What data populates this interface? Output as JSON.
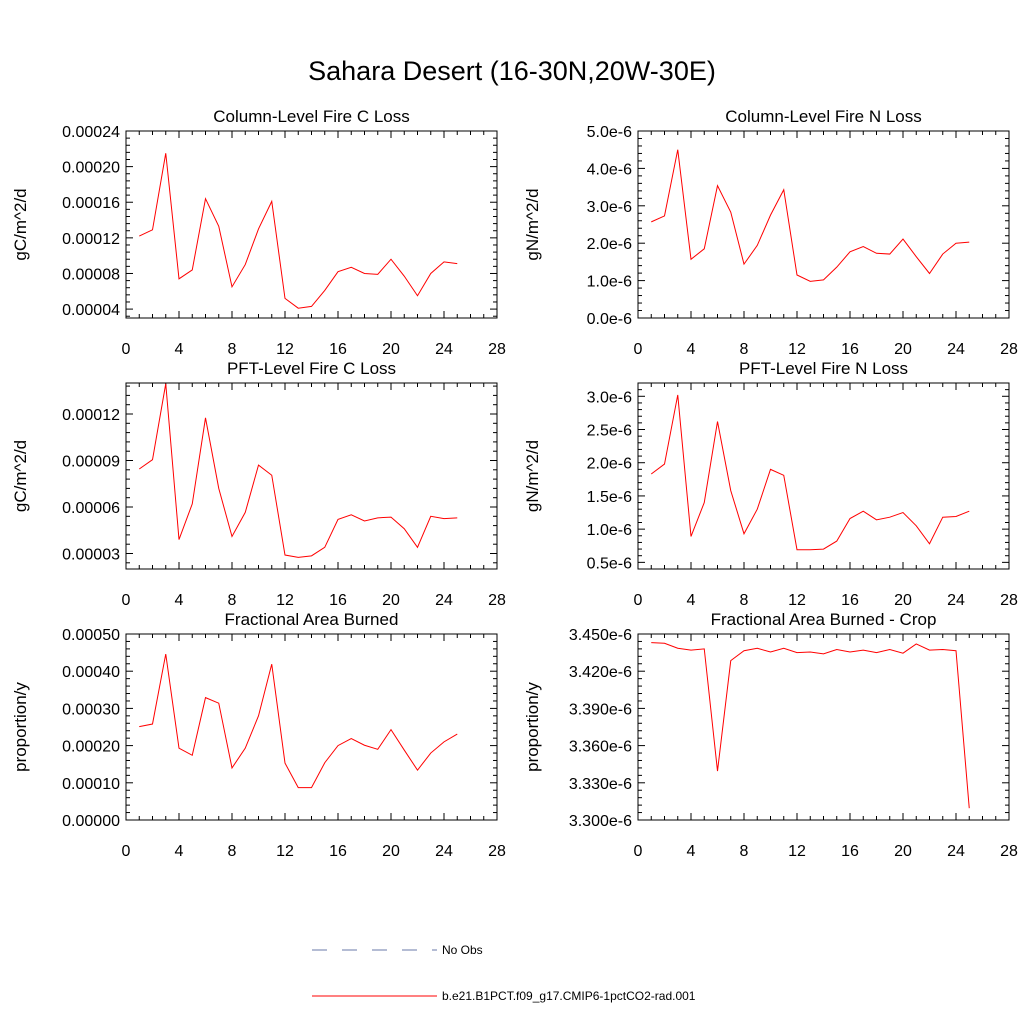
{
  "title": "Sahara Desert (16-30N,20W-30E)",
  "legend": {
    "entries": [
      {
        "label": "No Obs",
        "color": "#6a7aa8",
        "style": "dashed"
      },
      {
        "label": "b.e21.B1PCT.f09_g17.CMIP6-1pctCO2-rad.001",
        "color": "#ff0000",
        "style": "solid"
      }
    ]
  },
  "chart_data": [
    {
      "type": "line",
      "title": "Column-Level Fire C Loss",
      "xlabel": "",
      "ylabel": "gC/m^2/d",
      "xlim": [
        0,
        28
      ],
      "ylim": [
        3e-05,
        0.00024
      ],
      "x_ticks": [
        0,
        4,
        8,
        12,
        16,
        20,
        24,
        28
      ],
      "y_ticks": [
        4e-05,
        8e-05,
        0.00012,
        0.00016,
        0.0002,
        0.00024
      ],
      "y_tick_labels": [
        "0.00004",
        "0.00008",
        "0.00012",
        "0.00016",
        "0.00020",
        "0.00024"
      ],
      "x": [
        1,
        2,
        3,
        4,
        5,
        6,
        7,
        8,
        9,
        10,
        11,
        12,
        13,
        14,
        15,
        16,
        17,
        18,
        19,
        20,
        21,
        22,
        23,
        24,
        25
      ],
      "series": [
        {
          "values": [
            0.000122,
            0.000129,
            0.000215,
            7.4e-05,
            8.4e-05,
            0.000164,
            0.000133,
            6.5e-05,
            9e-05,
            0.00013,
            0.000161,
            5.2e-05,
            4.1e-05,
            4.3e-05,
            6.1e-05,
            8.2e-05,
            8.7e-05,
            8e-05,
            7.9e-05,
            9.6e-05,
            7.7e-05,
            5.5e-05,
            8e-05,
            9.3e-05,
            9.1e-05
          ],
          "color": "#ff0000"
        }
      ]
    },
    {
      "type": "line",
      "title": "Column-Level Fire N Loss",
      "xlabel": "",
      "ylabel": "gN/m^2/d",
      "xlim": [
        0,
        28
      ],
      "ylim": [
        0.0,
        5e-06
      ],
      "x_ticks": [
        0,
        4,
        8,
        12,
        16,
        20,
        24,
        28
      ],
      "y_ticks": [
        0.0,
        1e-06,
        2e-06,
        3e-06,
        4e-06,
        5e-06
      ],
      "y_tick_labels": [
        "0.0e-6",
        "1.0e-6",
        "2.0e-6",
        "3.0e-6",
        "4.0e-6",
        "5.0e-6"
      ],
      "x": [
        1,
        2,
        3,
        4,
        5,
        6,
        7,
        8,
        9,
        10,
        11,
        12,
        13,
        14,
        15,
        16,
        17,
        18,
        19,
        20,
        21,
        22,
        23,
        24,
        25
      ],
      "series": [
        {
          "values": [
            2.57e-06,
            2.73e-06,
            4.5e-06,
            1.57e-06,
            1.85e-06,
            3.54e-06,
            2.83e-06,
            1.44e-06,
            1.94e-06,
            2.75e-06,
            3.43e-06,
            1.15e-06,
            9.8e-07,
            1.02e-06,
            1.36e-06,
            1.77e-06,
            1.91e-06,
            1.73e-06,
            1.71e-06,
            2.11e-06,
            1.64e-06,
            1.19e-06,
            1.71e-06,
            2e-06,
            2.03e-06
          ],
          "color": "#ff0000"
        }
      ]
    },
    {
      "type": "line",
      "title": "PFT-Level Fire C Loss",
      "xlabel": "",
      "ylabel": "gC/m^2/d",
      "xlim": [
        0,
        28
      ],
      "ylim": [
        2e-05,
        0.00014
      ],
      "x_ticks": [
        0,
        4,
        8,
        12,
        16,
        20,
        24,
        28
      ],
      "y_ticks": [
        3e-05,
        6e-05,
        9e-05,
        0.00012
      ],
      "y_tick_labels": [
        "0.00003",
        "0.00006",
        "0.00009",
        "0.00012"
      ],
      "x": [
        1,
        2,
        3,
        4,
        5,
        6,
        7,
        8,
        9,
        10,
        11,
        12,
        13,
        14,
        15,
        16,
        17,
        18,
        19,
        20,
        21,
        22,
        23,
        24,
        25
      ],
      "series": [
        {
          "values": [
            8.45e-05,
            9.05e-05,
            0.0001395,
            3.9e-05,
            6.2e-05,
            0.0001175,
            7.2e-05,
            4.1e-05,
            5.65e-05,
            8.7e-05,
            8.05e-05,
            2.9e-05,
            2.75e-05,
            2.85e-05,
            3.4e-05,
            5.2e-05,
            5.5e-05,
            5.1e-05,
            5.3e-05,
            5.35e-05,
            4.6e-05,
            3.4e-05,
            5.4e-05,
            5.25e-05,
            5.3e-05
          ],
          "color": "#ff0000"
        }
      ]
    },
    {
      "type": "line",
      "title": "PFT-Level Fire N Loss",
      "xlabel": "",
      "ylabel": "gN/m^2/d",
      "xlim": [
        0,
        28
      ],
      "ylim": [
        4e-07,
        3.2e-06
      ],
      "x_ticks": [
        0,
        4,
        8,
        12,
        16,
        20,
        24,
        28
      ],
      "y_ticks": [
        5e-07,
        1e-06,
        1.5e-06,
        2e-06,
        2.5e-06,
        3e-06
      ],
      "y_tick_labels": [
        "0.5e-6",
        "1.0e-6",
        "1.5e-6",
        "2.0e-6",
        "2.5e-6",
        "3.0e-6"
      ],
      "x": [
        1,
        2,
        3,
        4,
        5,
        6,
        7,
        8,
        9,
        10,
        11,
        12,
        13,
        14,
        15,
        16,
        17,
        18,
        19,
        20,
        21,
        22,
        23,
        24,
        25
      ],
      "series": [
        {
          "values": [
            1.83e-06,
            1.98e-06,
            3.02e-06,
            8.9e-07,
            1.4e-06,
            2.62e-06,
            1.58e-06,
            9.3e-07,
            1.3e-06,
            1.9e-06,
            1.81e-06,
            6.9e-07,
            6.9e-07,
            7e-07,
            8.2e-07,
            1.16e-06,
            1.27e-06,
            1.14e-06,
            1.18e-06,
            1.25e-06,
            1.05e-06,
            7.8e-07,
            1.18e-06,
            1.19e-06,
            1.27e-06
          ],
          "color": "#ff0000"
        }
      ]
    },
    {
      "type": "line",
      "title": "Fractional Area Burned",
      "xlabel": "",
      "ylabel": "proportion/y",
      "xlim": [
        0,
        28
      ],
      "ylim": [
        0.0,
        0.0005
      ],
      "x_ticks": [
        0,
        4,
        8,
        12,
        16,
        20,
        24,
        28
      ],
      "y_ticks": [
        0.0,
        0.0001,
        0.0002,
        0.0003,
        0.0004,
        0.0005
      ],
      "y_tick_labels": [
        "0.00000",
        "0.00010",
        "0.00020",
        "0.00030",
        "0.00040",
        "0.00050"
      ],
      "x": [
        1,
        2,
        3,
        4,
        5,
        6,
        7,
        8,
        9,
        10,
        11,
        12,
        13,
        14,
        15,
        16,
        17,
        18,
        19,
        20,
        21,
        22,
        23,
        24,
        25
      ],
      "series": [
        {
          "values": [
            0.000251,
            0.000258,
            0.000446,
            0.000193,
            0.000174,
            0.000329,
            0.000314,
            0.00014,
            0.000193,
            0.00028,
            0.000419,
            0.000153,
            8.7e-05,
            8.7e-05,
            0.000154,
            0.0002,
            0.000219,
            0.000201,
            0.00019,
            0.000243,
            0.000188,
            0.000134,
            0.00018,
            0.00021,
            0.000231
          ],
          "color": "#ff0000"
        }
      ]
    },
    {
      "type": "line",
      "title": "Fractional Area Burned - Crop",
      "xlabel": "",
      "ylabel": "proportion/y",
      "xlim": [
        0,
        28
      ],
      "ylim": [
        3.3e-06,
        3.45e-06
      ],
      "x_ticks": [
        0,
        4,
        8,
        12,
        16,
        20,
        24,
        28
      ],
      "y_ticks": [
        3.3e-06,
        3.33e-06,
        3.36e-06,
        3.39e-06,
        3.42e-06,
        3.45e-06
      ],
      "y_tick_labels": [
        "3.300e-6",
        "3.330e-6",
        "3.360e-6",
        "3.390e-6",
        "3.420e-6",
        "3.450e-6"
      ],
      "x": [
        1,
        2,
        3,
        4,
        5,
        6,
        7,
        8,
        9,
        10,
        11,
        12,
        13,
        14,
        15,
        16,
        17,
        18,
        19,
        20,
        21,
        22,
        23,
        24,
        25
      ],
      "series": [
        {
          "values": [
            3.443e-06,
            3.4425e-06,
            3.4385e-06,
            3.437e-06,
            3.438e-06,
            3.3395e-06,
            3.4285e-06,
            3.4365e-06,
            3.4385e-06,
            3.4355e-06,
            3.4385e-06,
            3.435e-06,
            3.4355e-06,
            3.434e-06,
            3.4375e-06,
            3.4355e-06,
            3.437e-06,
            3.435e-06,
            3.4375e-06,
            3.4345e-06,
            3.442e-06,
            3.437e-06,
            3.4375e-06,
            3.4365e-06,
            3.3095e-06
          ],
          "color": "#ff0000"
        }
      ]
    }
  ]
}
